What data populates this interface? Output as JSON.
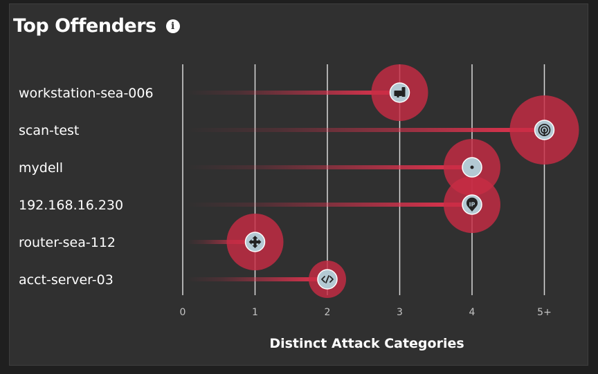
{
  "panel": {
    "title": "Top Offenders",
    "info_icon": "info-icon"
  },
  "colors": {
    "background": "#303030",
    "lollipop": "#e8324f",
    "halo": "#c72c44",
    "marker": "#b3c9d3",
    "gridline": "#d9d9d9"
  },
  "chart_data": {
    "type": "lollipop",
    "title": "Top Offenders",
    "xlabel": "Distinct Attack Categories",
    "ylabel": "",
    "xlim": [
      0,
      5
    ],
    "x_ticks": [
      "0",
      "1",
      "2",
      "3",
      "4",
      "5+"
    ],
    "categories": [
      "workstation-sea-006",
      "scan-test",
      "mydell",
      "192.168.16.230",
      "router-sea-112",
      "acct-server-03"
    ],
    "values": [
      3,
      5,
      4,
      4,
      1,
      2
    ],
    "icons": [
      "workstation-icon",
      "scanner-icon",
      "dot-icon",
      "ip-icon",
      "router-icon",
      "code-icon"
    ],
    "grid": true
  }
}
